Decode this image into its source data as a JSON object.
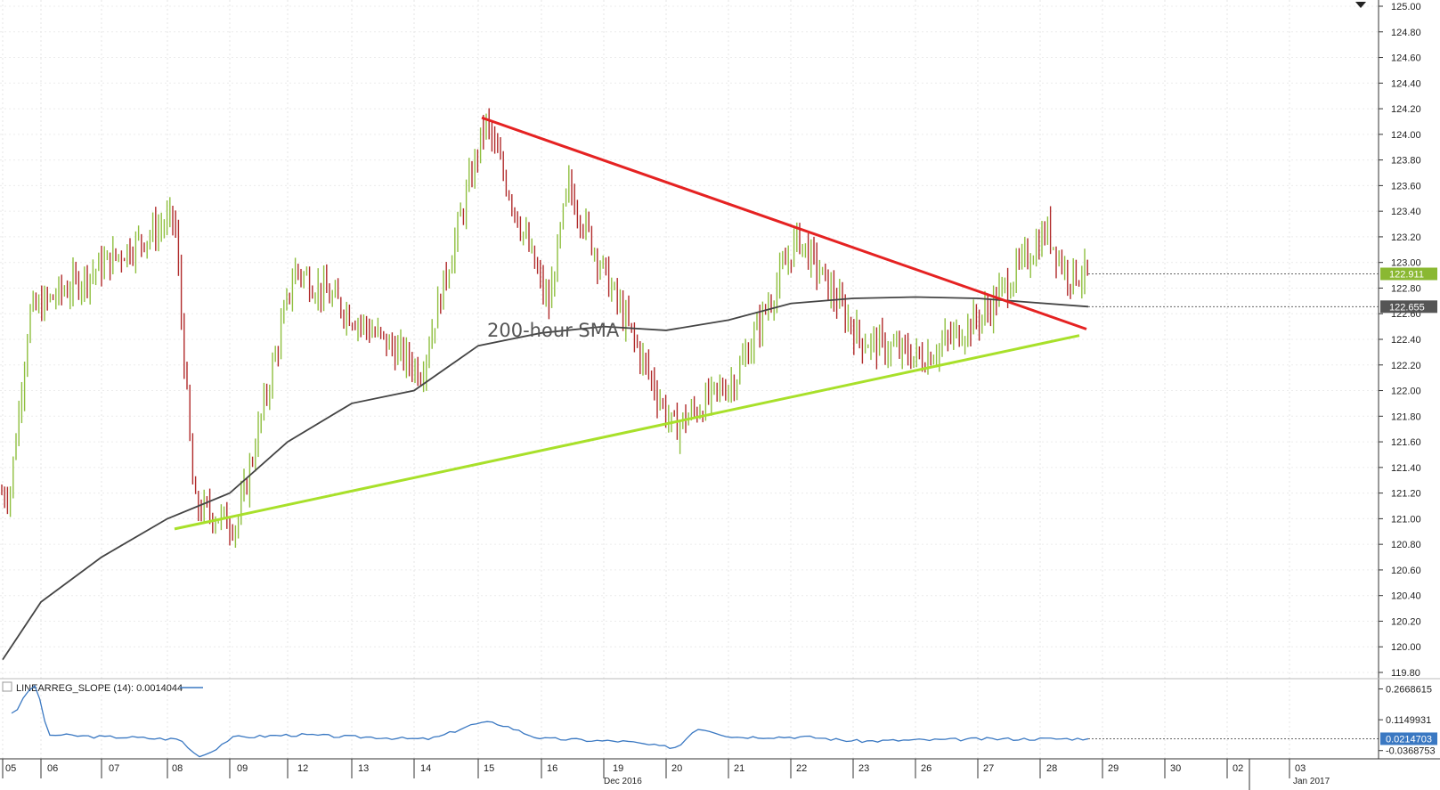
{
  "chart_data": [
    {
      "type": "ohlc-bar",
      "x_axis": {
        "labels": [
          "05",
          "06",
          "07",
          "08",
          "09",
          "12",
          "13",
          "14",
          "15",
          "16",
          "19",
          "20",
          "21",
          "22",
          "23",
          "26",
          "27",
          "28",
          "29",
          "30",
          "02",
          "03"
        ],
        "month_labels": [
          "Dec 2016",
          "Jan 2017"
        ]
      },
      "y_axis": {
        "side": "right",
        "range": [
          119.8,
          125.0
        ],
        "ticks": [
          "125.00",
          "124.80",
          "124.60",
          "124.40",
          "124.20",
          "124.00",
          "123.80",
          "123.60",
          "123.40",
          "123.20",
          "123.00",
          "122.80",
          "122.60",
          "122.40",
          "122.20",
          "122.00",
          "121.80",
          "121.60",
          "121.40",
          "121.20",
          "121.00",
          "120.80",
          "120.60",
          "120.40",
          "120.20",
          "120.00",
          "119.80"
        ]
      },
      "colors": {
        "up": "#8fbf3f",
        "down": "#b02a2a"
      },
      "key_points": [
        {
          "x": "05",
          "y": 121.2
        },
        {
          "x": "05",
          "y": 122.6
        },
        {
          "x": "08",
          "y": 123.35
        },
        {
          "x": "08",
          "y": 121.1
        },
        {
          "x": "09",
          "y": 120.95
        },
        {
          "x": "12",
          "y": 122.95
        },
        {
          "x": "14",
          "y": 122.15
        },
        {
          "x": "15",
          "y": 124.1
        },
        {
          "x": "16",
          "y": 122.65
        },
        {
          "x": "16",
          "y": 123.6
        },
        {
          "x": "19",
          "y": 122.8
        },
        {
          "x": "20",
          "y": 121.7
        },
        {
          "x": "21",
          "y": 122.1
        },
        {
          "x": "22",
          "y": 123.2
        },
        {
          "x": "23",
          "y": 122.4
        },
        {
          "x": "26",
          "y": 122.25
        },
        {
          "x": "27",
          "y": 122.6
        },
        {
          "x": "28",
          "y": 123.25
        },
        {
          "x": "28",
          "y": 122.911
        }
      ],
      "series": [
        {
          "name": "200-hour SMA",
          "color": "#444444",
          "points": [
            {
              "x": "05",
              "y": 119.9
            },
            {
              "x": "06",
              "y": 120.35
            },
            {
              "x": "07",
              "y": 120.7
            },
            {
              "x": "08",
              "y": 121.0
            },
            {
              "x": "09",
              "y": 121.2
            },
            {
              "x": "12",
              "y": 121.6
            },
            {
              "x": "13",
              "y": 121.9
            },
            {
              "x": "14",
              "y": 122.0
            },
            {
              "x": "15",
              "y": 122.35
            },
            {
              "x": "16",
              "y": 122.45
            },
            {
              "x": "19",
              "y": 122.5
            },
            {
              "x": "20",
              "y": 122.47
            },
            {
              "x": "21",
              "y": 122.55
            },
            {
              "x": "22",
              "y": 122.68
            },
            {
              "x": "23",
              "y": 122.72
            },
            {
              "x": "26",
              "y": 122.73
            },
            {
              "x": "27",
              "y": 122.72
            },
            {
              "x": "28",
              "y": 122.655
            }
          ]
        }
      ],
      "trendlines": [
        {
          "color": "#e52222",
          "from": {
            "x": "14",
            "y": 124.13
          },
          "to": {
            "x": "28",
            "y": 122.48
          }
        },
        {
          "color": "#a8e02a",
          "from": {
            "x": "08",
            "y": 120.92
          },
          "to": {
            "x": "28",
            "y": 122.43
          }
        }
      ],
      "annotations": [
        "200-hour SMA"
      ],
      "last_price_labels": [
        {
          "value": "122.911",
          "color": "#8ab832"
        },
        {
          "value": "122.655",
          "color": "#555555"
        }
      ]
    },
    {
      "type": "line",
      "title": "LINEARREG_SLOPE (14): 0.0014044",
      "y_ticks": [
        "0.2668615",
        "0.1149931",
        "-0.0368753"
      ],
      "y_range": [
        -0.06,
        0.3
      ],
      "series": [
        {
          "name": "LINEARREG_SLOPE (14)",
          "color": "#3a78c2",
          "points": [
            {
              "x": "05",
              "y": 0.15
            },
            {
              "x": "05",
              "y": 0.28
            },
            {
              "x": "06",
              "y": 0.04
            },
            {
              "x": "07",
              "y": 0.03
            },
            {
              "x": "08",
              "y": 0.02
            },
            {
              "x": "08",
              "y": -0.06
            },
            {
              "x": "09",
              "y": 0.03
            },
            {
              "x": "12",
              "y": 0.04
            },
            {
              "x": "13",
              "y": 0.03
            },
            {
              "x": "14",
              "y": 0.02
            },
            {
              "x": "15",
              "y": 0.1
            },
            {
              "x": "16",
              "y": 0.02
            },
            {
              "x": "19",
              "y": 0.01
            },
            {
              "x": "20",
              "y": -0.02
            },
            {
              "x": "20",
              "y": 0.07
            },
            {
              "x": "21",
              "y": 0.03
            },
            {
              "x": "22",
              "y": 0.03
            },
            {
              "x": "23",
              "y": 0.01
            },
            {
              "x": "26",
              "y": 0.015
            },
            {
              "x": "27",
              "y": 0.02
            },
            {
              "x": "28",
              "y": 0.0214703
            }
          ]
        }
      ],
      "last_value_label": {
        "value": "0.0214703",
        "color": "#3a78c2"
      }
    }
  ],
  "icons": {
    "dropdown": "chevron-down-icon",
    "indicator_toggle": "checkbox-icon"
  }
}
